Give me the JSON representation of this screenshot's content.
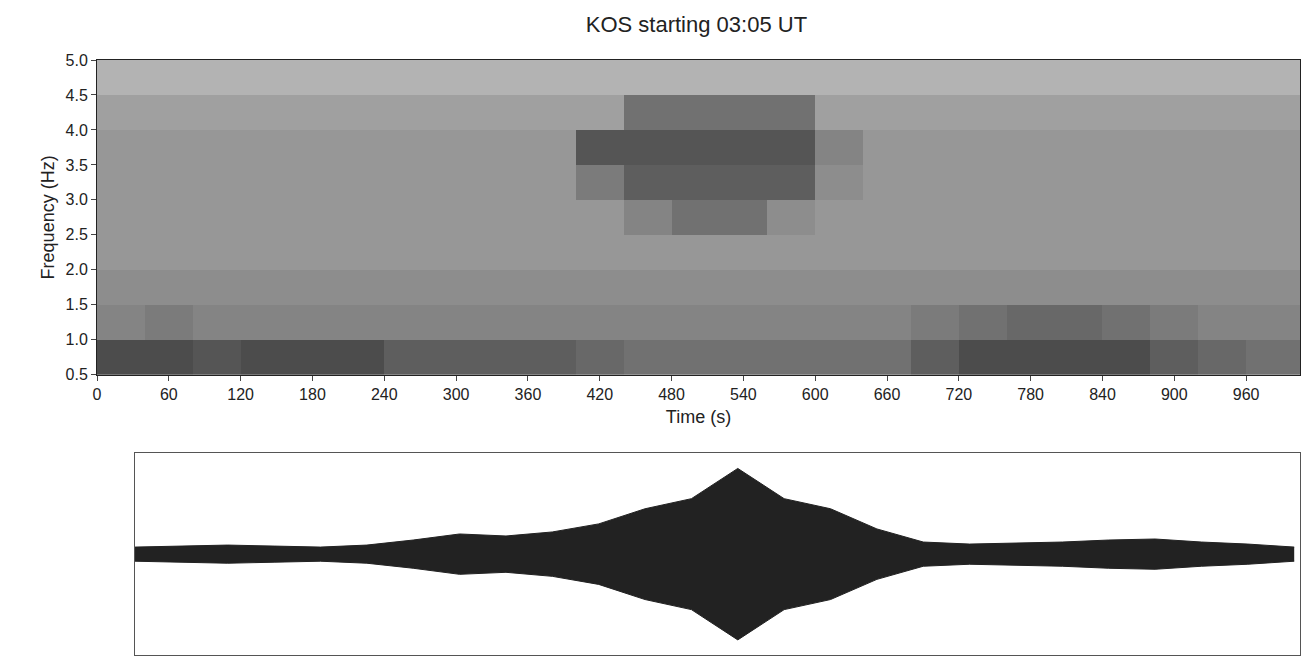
{
  "chart_data": [
    {
      "type": "heatmap",
      "title": "KOS starting 03:05 UT",
      "x_label": "Time (s)",
      "y_label": "Frequency (Hz)",
      "x_edges": [
        0,
        40,
        80,
        120,
        160,
        200,
        240,
        280,
        320,
        360,
        400,
        440,
        480,
        520,
        560,
        600,
        640,
        680,
        720,
        760,
        800,
        840,
        880,
        920,
        960,
        1005
      ],
      "y_edges": [
        0.5,
        1.0,
        1.5,
        2.0,
        2.5,
        3.0,
        3.5,
        4.0,
        4.5,
        5.0
      ],
      "cells": [
        [
          8,
          8,
          7.5,
          8,
          8,
          8,
          7,
          7,
          7,
          7,
          6.5,
          6,
          6,
          6,
          6,
          6,
          6,
          7,
          8,
          8,
          8,
          8,
          7,
          6.5,
          6
        ],
        [
          5,
          5.5,
          5,
          5,
          5,
          5,
          5,
          5,
          5,
          5,
          5,
          5,
          5,
          5,
          5,
          5,
          5,
          5.5,
          6,
          6.5,
          6.5,
          6,
          5.5,
          5,
          5
        ],
        [
          4.5,
          4.5,
          4.5,
          4.5,
          4.5,
          4.5,
          4.5,
          4.5,
          4.5,
          4.5,
          4.5,
          4.5,
          4.5,
          4.5,
          4.5,
          4.5,
          4.5,
          4.5,
          4.5,
          4.5,
          4.5,
          4.5,
          4.5,
          4.5,
          4.5
        ],
        [
          4,
          4,
          4,
          4,
          4,
          4,
          4,
          4,
          4,
          4,
          4,
          4,
          4,
          4,
          4,
          4,
          4,
          4,
          4,
          4,
          4,
          4,
          4,
          4,
          4
        ],
        [
          4,
          4,
          4,
          4,
          4,
          4,
          4,
          4,
          4,
          4,
          4,
          5,
          6,
          6,
          4.5,
          4,
          4,
          4,
          4,
          4,
          4,
          4,
          4,
          4,
          4
        ],
        [
          4,
          4,
          4,
          4,
          4,
          4,
          4,
          4,
          4,
          4,
          5.5,
          7,
          7,
          7,
          7,
          4.5,
          4,
          4,
          4,
          4,
          4,
          4,
          4,
          4,
          4
        ],
        [
          4,
          4,
          4,
          4,
          4,
          4,
          4,
          4,
          4,
          4,
          7.5,
          7.5,
          7.5,
          7.5,
          7.5,
          5,
          4,
          4,
          4,
          4,
          4,
          4,
          4,
          4,
          4
        ],
        [
          3.5,
          3.5,
          3.5,
          3.5,
          3.5,
          3.5,
          3.5,
          3.5,
          3.5,
          3.5,
          3.5,
          6,
          6,
          6,
          6,
          3.5,
          3.5,
          3.5,
          3.5,
          3.5,
          3.5,
          3.5,
          3.5,
          3.5,
          3.5
        ],
        [
          2.5,
          2.5,
          2.5,
          2.5,
          2.5,
          2.5,
          2.5,
          2.5,
          2.5,
          2.5,
          2.5,
          2.5,
          2.5,
          2.5,
          2.5,
          2.5,
          2.5,
          2.5,
          2.5,
          2.5,
          2.5,
          2.5,
          2.5,
          2.5,
          2.5
        ]
      ],
      "zlim": [
        0,
        10
      ],
      "colors": [
        "#e2e2e2",
        "#262626"
      ],
      "xlim": [
        0,
        1005
      ],
      "ylim": [
        0.5,
        5.0
      ],
      "xticks": [
        0,
        60,
        120,
        180,
        240,
        300,
        360,
        420,
        480,
        540,
        600,
        660,
        720,
        780,
        840,
        900,
        960
      ],
      "yticks": [
        0.5,
        {
          "value": 1,
          "label": "1.0"
        },
        1.5,
        {
          "value": 2,
          "label": "2.0"
        },
        2.5,
        {
          "value": 3,
          "label": "3.0"
        },
        3.5,
        {
          "value": 4,
          "label": "4.0"
        },
        4.5,
        {
          "value": 5,
          "label": "5.0"
        }
      ],
      "grid": false
    },
    {
      "type": "area",
      "x": [
        0,
        40,
        80,
        120,
        160,
        200,
        240,
        280,
        320,
        360,
        400,
        440,
        480,
        520,
        560,
        600,
        640,
        680,
        720,
        760,
        800,
        840,
        880,
        920,
        960,
        1000
      ],
      "values": [
        0.07,
        0.08,
        0.09,
        0.08,
        0.07,
        0.09,
        0.14,
        0.2,
        0.18,
        0.22,
        0.3,
        0.45,
        0.55,
        0.85,
        0.55,
        0.45,
        0.25,
        0.12,
        0.1,
        0.11,
        0.12,
        0.14,
        0.15,
        0.12,
        0.1,
        0.07
      ],
      "xlim": [
        0,
        1005
      ],
      "ylim": [
        -1,
        1
      ],
      "color": "#222222",
      "tick_labels": false,
      "grid": false
    }
  ]
}
